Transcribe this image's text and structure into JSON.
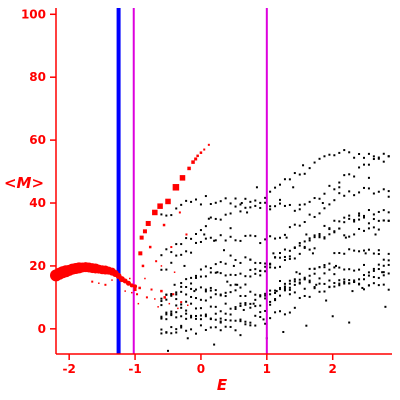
{
  "chart_data": {
    "type": "scatter",
    "title": "",
    "xlabel": "E",
    "ylabel": "<M>",
    "xlim": [
      -2.2,
      2.9
    ],
    "ylim": [
      -8,
      102
    ],
    "x_ticks": [
      -2,
      -1,
      0,
      1,
      2
    ],
    "y_ticks": [
      0,
      20,
      40,
      60,
      80,
      100
    ],
    "grid": false,
    "colors": {
      "axis": "#ff0000",
      "highlight": "#ff0000",
      "points": "#000000",
      "blue_line": "#0000ff",
      "magenta_line": "#dd00dd"
    },
    "vertical_lines": [
      {
        "x": -1.25,
        "color": "#0000ff",
        "weight": "thick"
      },
      {
        "x": -1.02,
        "color": "#dd00dd",
        "weight": "thin"
      },
      {
        "x": 1.0,
        "color": "#dd00dd",
        "weight": "thin"
      }
    ],
    "highlight_band": {
      "color": "#ff0000",
      "points": [
        [
          -2.2,
          17,
          6
        ],
        [
          -2.15,
          17.5,
          6
        ],
        [
          -2.1,
          18,
          6
        ],
        [
          -2.05,
          18.3,
          6
        ],
        [
          -2.0,
          18.6,
          5.5
        ],
        [
          -1.95,
          19,
          5.5
        ],
        [
          -1.9,
          19.2,
          5.5
        ],
        [
          -1.85,
          19.4,
          5.5
        ],
        [
          -1.8,
          19.5,
          5
        ],
        [
          -1.75,
          19.6,
          5
        ],
        [
          -1.7,
          19.5,
          5
        ],
        [
          -1.65,
          19.3,
          5
        ],
        [
          -1.6,
          19.2,
          5
        ],
        [
          -1.55,
          19,
          4.5
        ],
        [
          -1.5,
          18.8,
          4.5
        ],
        [
          -1.45,
          18.7,
          4.5
        ],
        [
          -1.4,
          18.5,
          4
        ],
        [
          -1.35,
          18.2,
          4
        ],
        [
          -1.3,
          17.6,
          3.5
        ],
        [
          -1.25,
          16.8,
          3
        ],
        [
          -1.2,
          15.8,
          3
        ],
        [
          -1.15,
          15.2,
          2.5
        ],
        [
          -1.1,
          14.5,
          2.5
        ],
        [
          -1.05,
          13.8,
          2
        ],
        [
          -1.0,
          13.5,
          2
        ]
      ]
    },
    "highlight_points": [
      [
        -1.0,
        12.5,
        3
      ],
      [
        -0.97,
        11,
        2
      ],
      [
        -0.93,
        13,
        2.5
      ],
      [
        -0.92,
        24,
        4
      ],
      [
        -0.9,
        29,
        4
      ],
      [
        -0.88,
        20,
        2.5
      ],
      [
        -0.85,
        31,
        4
      ],
      [
        -0.82,
        10,
        2
      ],
      [
        -0.8,
        33.5,
        5
      ],
      [
        -0.77,
        26,
        2.5
      ],
      [
        -0.75,
        12.5,
        2
      ],
      [
        -0.7,
        37,
        5.5
      ],
      [
        -0.68,
        21.5,
        2
      ],
      [
        -0.62,
        39,
        5.5
      ],
      [
        -0.6,
        12,
        2.5
      ],
      [
        -0.56,
        33,
        2.5
      ],
      [
        -0.55,
        10,
        2.5
      ],
      [
        -0.5,
        40.5,
        5.5
      ],
      [
        -0.45,
        26,
        2
      ],
      [
        -0.42,
        11,
        2
      ],
      [
        -0.38,
        45,
        6.5
      ],
      [
        -0.32,
        37,
        2
      ],
      [
        -0.3,
        8.5,
        2
      ],
      [
        -0.28,
        48,
        5.5
      ],
      [
        -0.22,
        30,
        2
      ],
      [
        -0.18,
        51,
        3.5
      ],
      [
        -0.12,
        53,
        3.5
      ],
      [
        -0.08,
        54,
        3
      ],
      [
        -0.05,
        55,
        2.5
      ],
      [
        0.0,
        56,
        2.5
      ],
      [
        0.05,
        57,
        2
      ],
      [
        0.12,
        58.5,
        2
      ],
      [
        -0.95,
        8,
        1.5
      ],
      [
        -0.65,
        7,
        1.5
      ],
      [
        -0.35,
        6.5,
        1.5
      ],
      [
        -1.65,
        15,
        2
      ],
      [
        -1.55,
        14.5,
        1.5
      ],
      [
        -1.45,
        14,
        2
      ],
      [
        -1.35,
        15.5,
        1.5
      ],
      [
        -1.15,
        12,
        1.5
      ],
      [
        -1.08,
        16,
        1.5
      ],
      [
        -1.05,
        11.5,
        1.5
      ],
      [
        -0.7,
        9.5,
        1.5
      ],
      [
        -0.48,
        8,
        1.5
      ],
      [
        -0.2,
        7.5,
        1.5
      ],
      [
        -0.85,
        16,
        1.5
      ],
      [
        -0.6,
        20,
        1.5
      ],
      [
        -0.4,
        18,
        1.5
      ]
    ],
    "point_cloud": {
      "color": "#000000",
      "x_start": -0.6,
      "x_end": 2.88,
      "x_step": 0.075,
      "curves": [
        [
          7,
          20,
          0.2
        ],
        [
          7,
          27.5,
          0
        ],
        [
          7,
          34,
          0.35
        ],
        [
          7,
          12,
          0.1
        ],
        [
          8,
          9,
          0.3
        ],
        [
          9,
          6,
          0.5
        ],
        [
          6,
          4,
          0.25
        ],
        [
          6,
          2,
          0.4
        ],
        [
          5,
          -2,
          0.3
        ],
        [
          6,
          1,
          0.6
        ],
        [
          7,
          -4,
          0.55
        ]
      ],
      "noise": [
        [
          0.05,
          30
        ],
        [
          0.12,
          35
        ],
        [
          0.2,
          28
        ],
        [
          0.35,
          25
        ],
        [
          0.45,
          32
        ],
        [
          0.5,
          20
        ],
        [
          0.62,
          40
        ],
        [
          0.7,
          37
        ],
        [
          0.75,
          22
        ],
        [
          0.85,
          45
        ],
        [
          0.9,
          17
        ],
        [
          1.05,
          38
        ],
        [
          1.1,
          24
        ],
        [
          1.15,
          12
        ],
        [
          1.2,
          41
        ],
        [
          1.3,
          29
        ],
        [
          1.4,
          45
        ],
        [
          1.45,
          18
        ],
        [
          1.55,
          52
        ],
        [
          1.6,
          30
        ],
        [
          1.7,
          24
        ],
        [
          1.75,
          14
        ],
        [
          1.85,
          40
        ],
        [
          1.95,
          32
        ],
        [
          2.05,
          20
        ],
        [
          2.1,
          45
        ],
        [
          2.2,
          29
        ],
        [
          2.3,
          12
        ],
        [
          2.4,
          36
        ],
        [
          2.5,
          24
        ],
        [
          2.55,
          48
        ],
        [
          2.65,
          30
        ],
        [
          2.75,
          18
        ],
        [
          2.85,
          42
        ],
        [
          0.3,
          2
        ],
        [
          0.6,
          -2
        ],
        [
          0.95,
          3
        ],
        [
          1.25,
          -1
        ],
        [
          1.6,
          1
        ],
        [
          2.0,
          4
        ],
        [
          0.15,
          10
        ],
        [
          0.55,
          14
        ],
        [
          0.8,
          8
        ],
        [
          1.35,
          11
        ],
        [
          1.9,
          9
        ],
        [
          2.45,
          13
        ],
        [
          2.8,
          7
        ],
        [
          -0.4,
          14
        ],
        [
          -0.25,
          20
        ],
        [
          -0.1,
          12
        ],
        [
          0.25,
          18
        ],
        [
          0.4,
          15
        ],
        [
          -0.5,
          -7
        ],
        [
          -0.2,
          -3
        ],
        [
          0.2,
          -5
        ],
        [
          0.65,
          6
        ],
        [
          1.0,
          -3
        ],
        [
          2.25,
          2
        ],
        [
          2.7,
          25
        ],
        [
          1.5,
          38
        ]
      ]
    }
  }
}
